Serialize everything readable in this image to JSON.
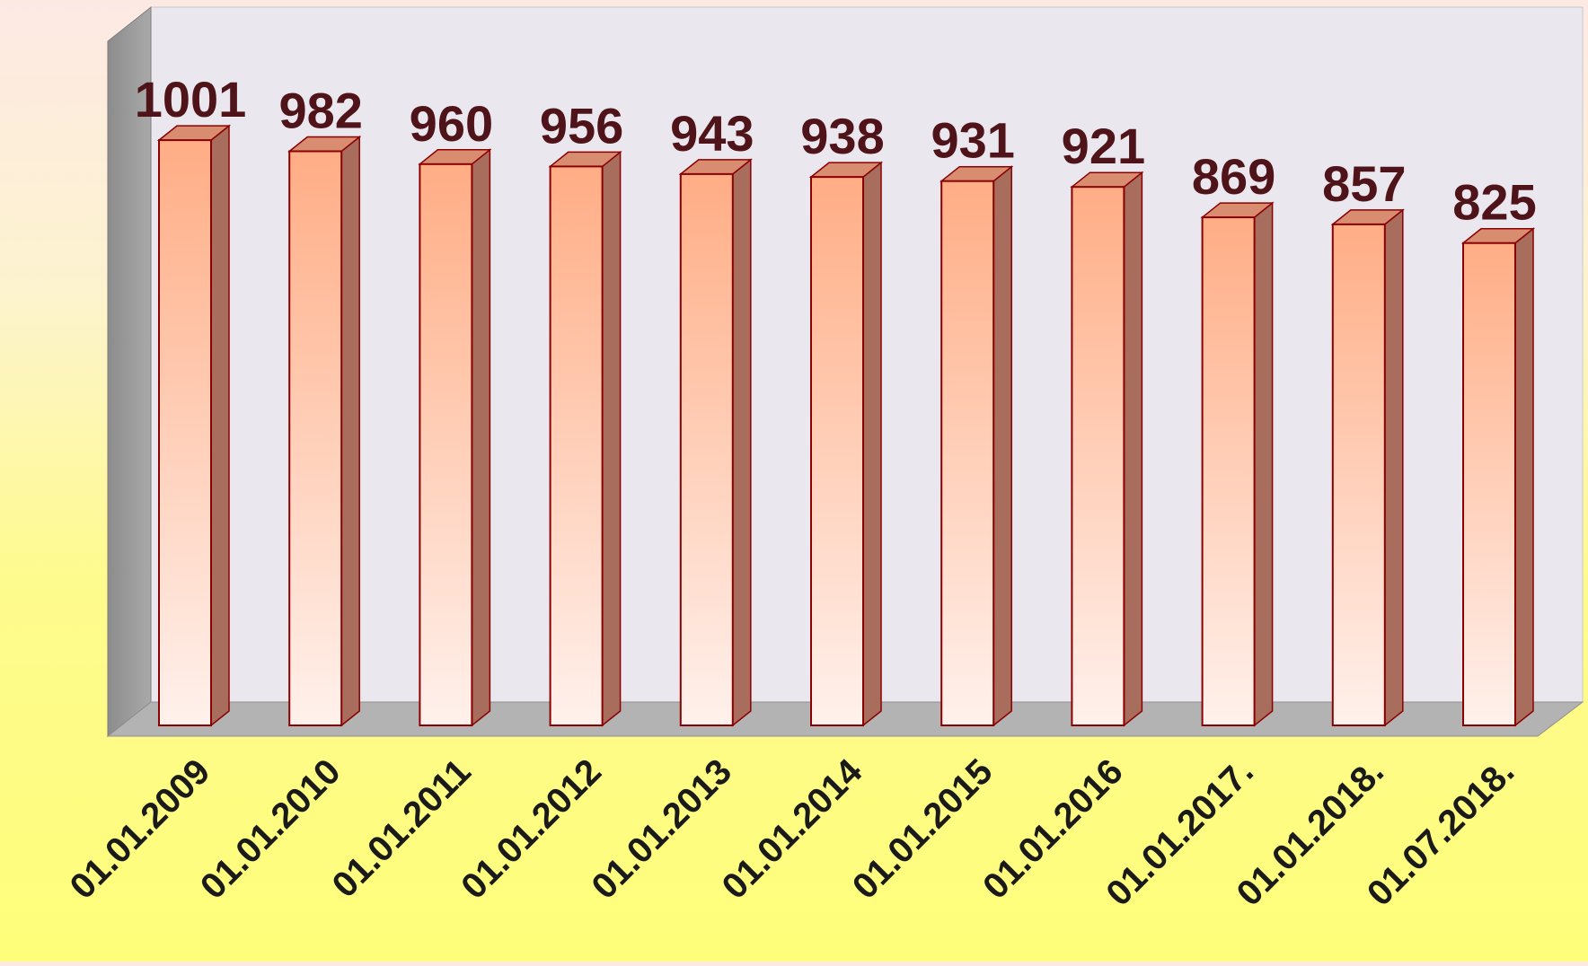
{
  "chart_data": {
    "type": "bar",
    "style": "3d-column",
    "categories": [
      "01.01.2009",
      "01.01.2010",
      "01.01.2011",
      "01.01.2012",
      "01.01.2013",
      "01.01.2014",
      "01.01.2015",
      "01.01.2016",
      "01.01.2017.",
      "01.01.2018.",
      "01.07.2018."
    ],
    "values": [
      1001,
      982,
      960,
      956,
      943,
      938,
      931,
      921,
      869,
      857,
      825
    ],
    "title": "",
    "xlabel": "",
    "ylabel": "",
    "ylim": [
      0,
      1210
    ],
    "grid": false,
    "legend": "none",
    "colors": {
      "bar_front_top": "#ffad85",
      "bar_front_bottom": "#fff1ec",
      "bar_side": "#a86d5c",
      "bar_top": "#d88c70",
      "bar_outline": "#8b0000",
      "value_label": "#4f1419",
      "category_label": "#1a1a1a",
      "back_wall": "#ebe7ee",
      "side_wall": "#999999",
      "floor": "#b3b3b3"
    }
  }
}
